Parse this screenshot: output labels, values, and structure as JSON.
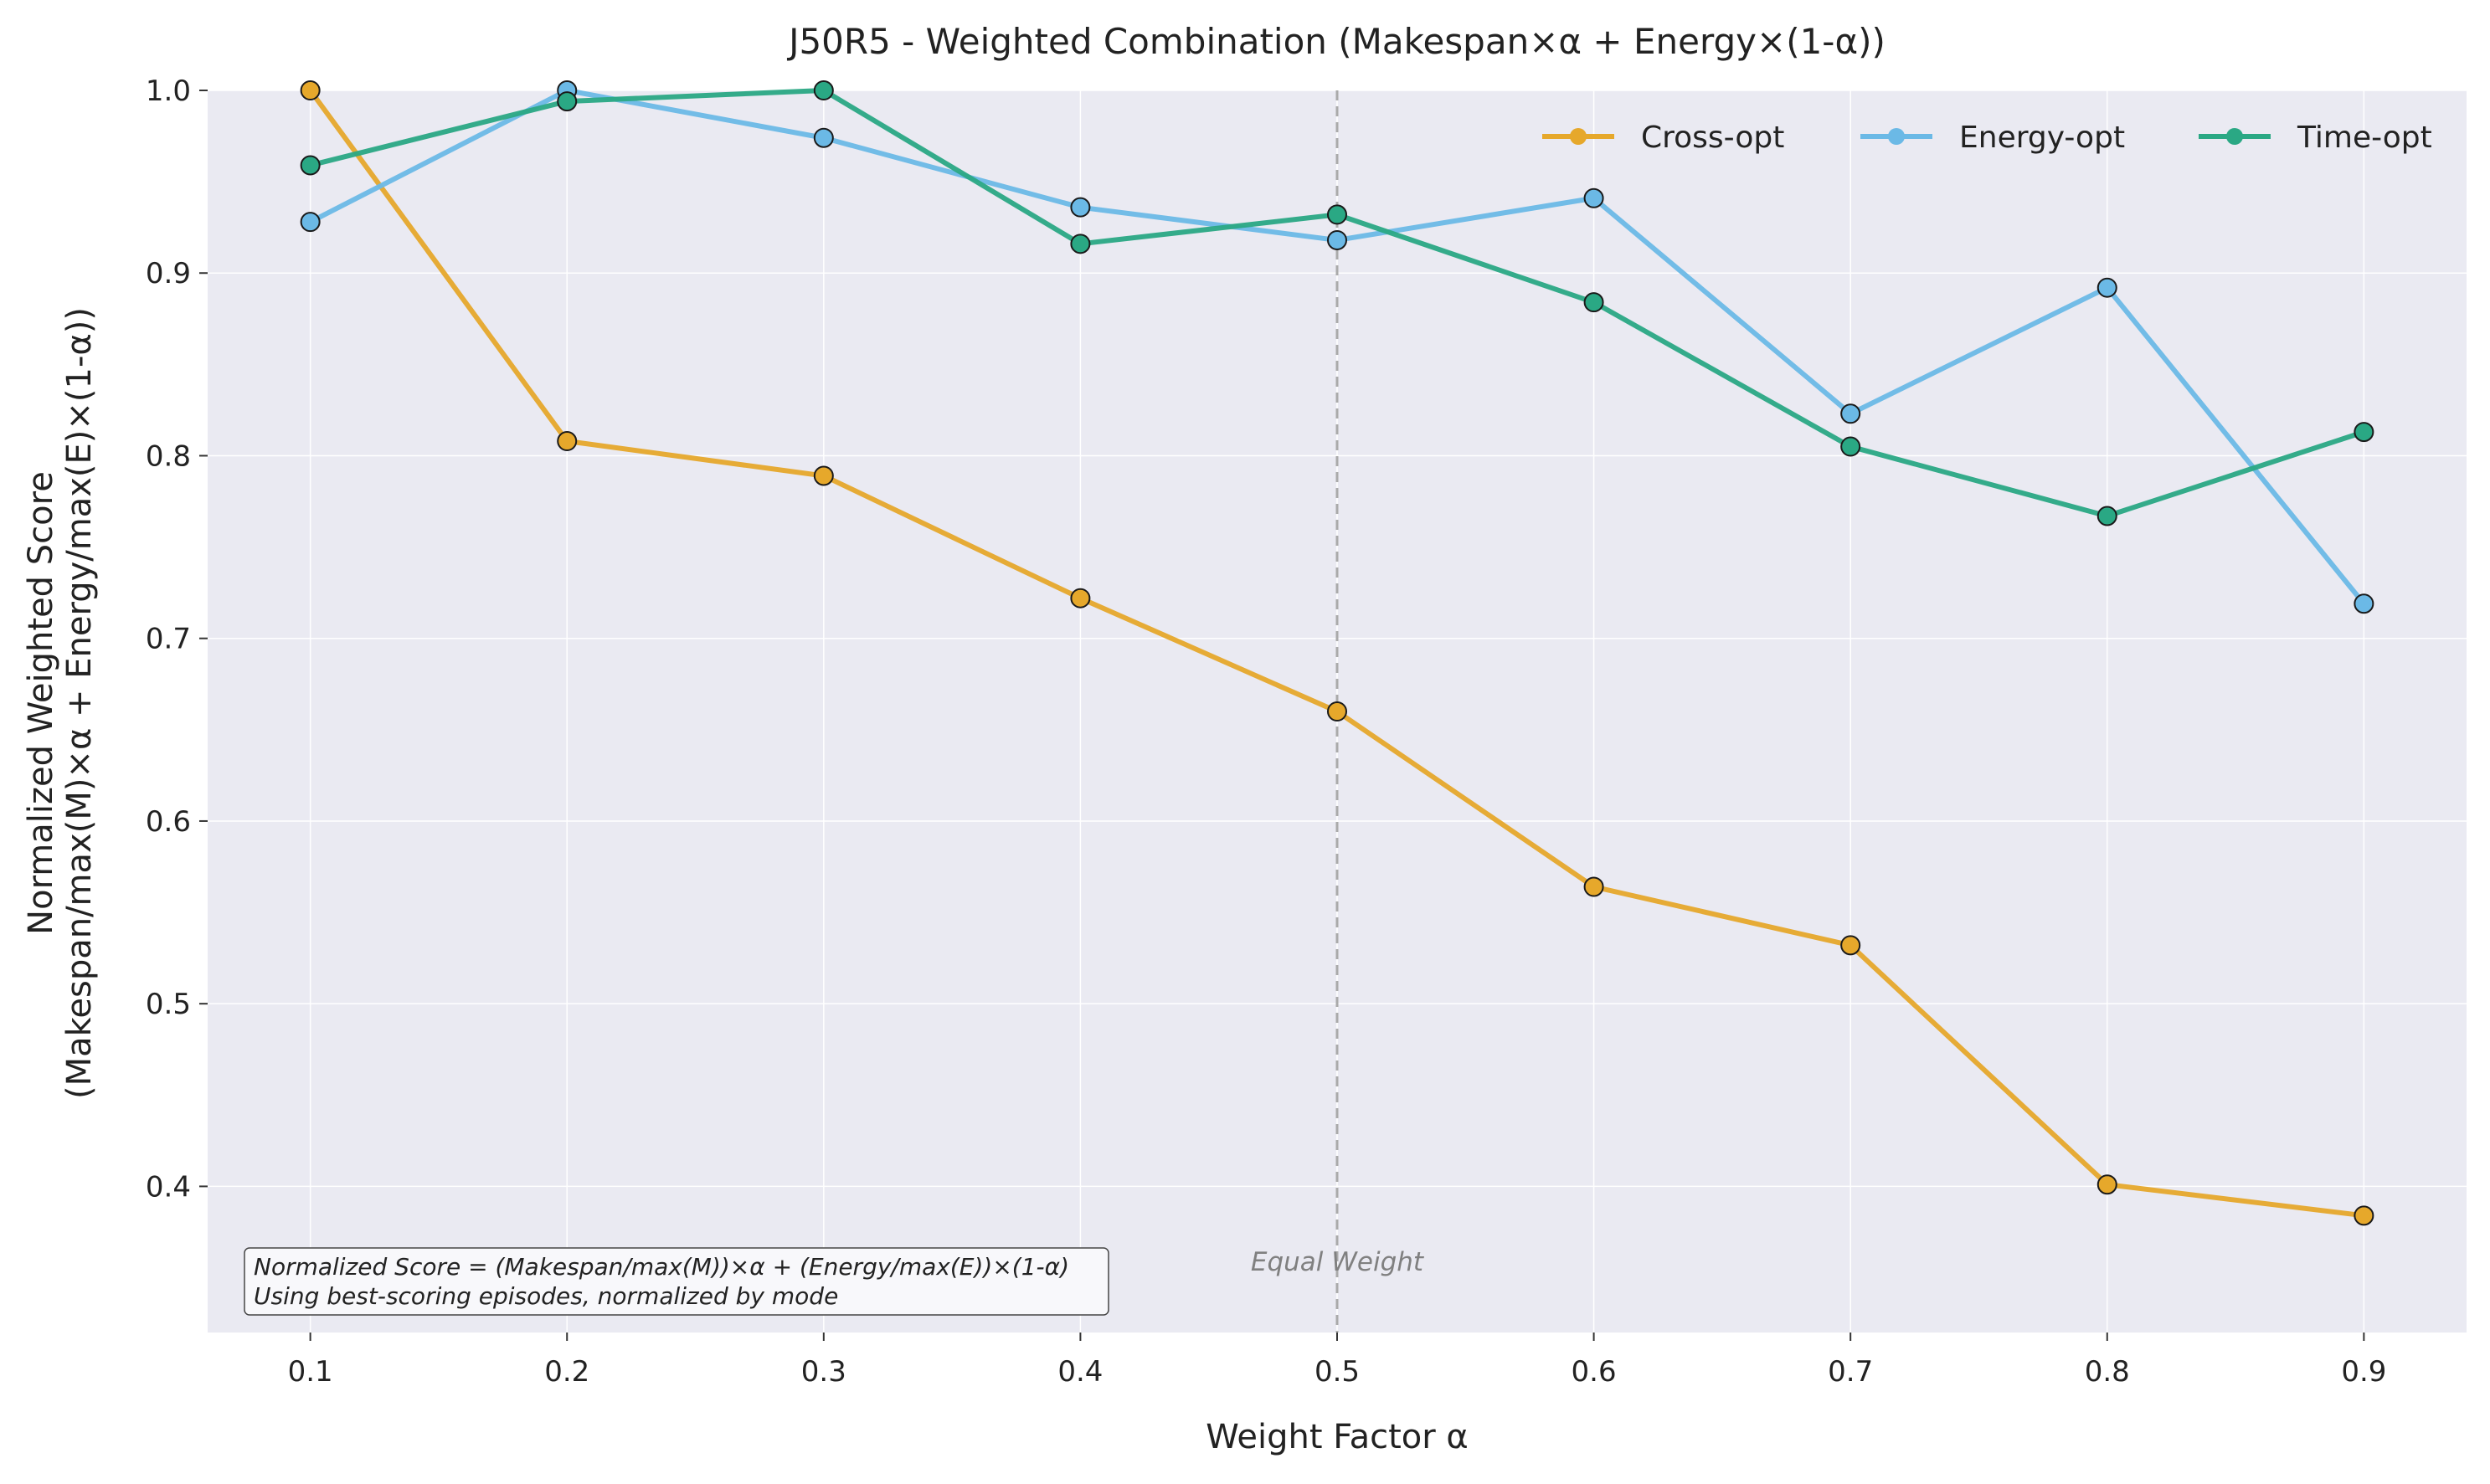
{
  "chart_data": {
    "type": "line",
    "title": "J50R5 - Weighted Combination (Makespan×α + Energy×(1-α))",
    "xlabel": "Weight Factor α",
    "ylabel_line1": "Normalized Weighted Score",
    "ylabel_line2": "(Makespan/max(M)×α + Energy/max(E)×(1-α))",
    "x": [
      0.1,
      0.2,
      0.3,
      0.4,
      0.5,
      0.6,
      0.7,
      0.8,
      0.9
    ],
    "x_tick_labels": [
      "0.1",
      "0.2",
      "0.3",
      "0.4",
      "0.5",
      "0.6",
      "0.7",
      "0.8",
      "0.9"
    ],
    "xlim": [
      0.06,
      0.94
    ],
    "y_ticks": [
      0.4,
      0.5,
      0.6,
      0.7,
      0.8,
      0.9,
      1.0
    ],
    "y_tick_labels": [
      "0.4",
      "0.5",
      "0.6",
      "0.7",
      "0.8",
      "0.9",
      "1.0"
    ],
    "ylim": [
      0.32,
      1.0
    ],
    "grid": true,
    "legend_position": "top-right",
    "background_color": "#eaeaf2",
    "series": [
      {
        "name": "Cross-opt",
        "color": "#e6a82b",
        "values": [
          1.0,
          0.808,
          0.789,
          0.722,
          0.66,
          0.564,
          0.532,
          0.401,
          0.384
        ]
      },
      {
        "name": "Energy-opt",
        "color": "#6bb9e6",
        "values": [
          0.928,
          1.0,
          0.974,
          0.936,
          0.918,
          0.941,
          0.823,
          0.892,
          0.719
        ]
      },
      {
        "name": "Time-opt",
        "color": "#2aa884",
        "values": [
          0.959,
          0.994,
          1.0,
          0.916,
          0.932,
          0.884,
          0.805,
          0.767,
          0.813
        ]
      }
    ],
    "vline": {
      "x": 0.5,
      "label": "Equal Weight"
    },
    "note_lines": [
      "Normalized Score = (Makespan/max(M))×α + (Energy/max(E))×(1-α)",
      "Using best-scoring episodes, normalized by mode"
    ]
  }
}
